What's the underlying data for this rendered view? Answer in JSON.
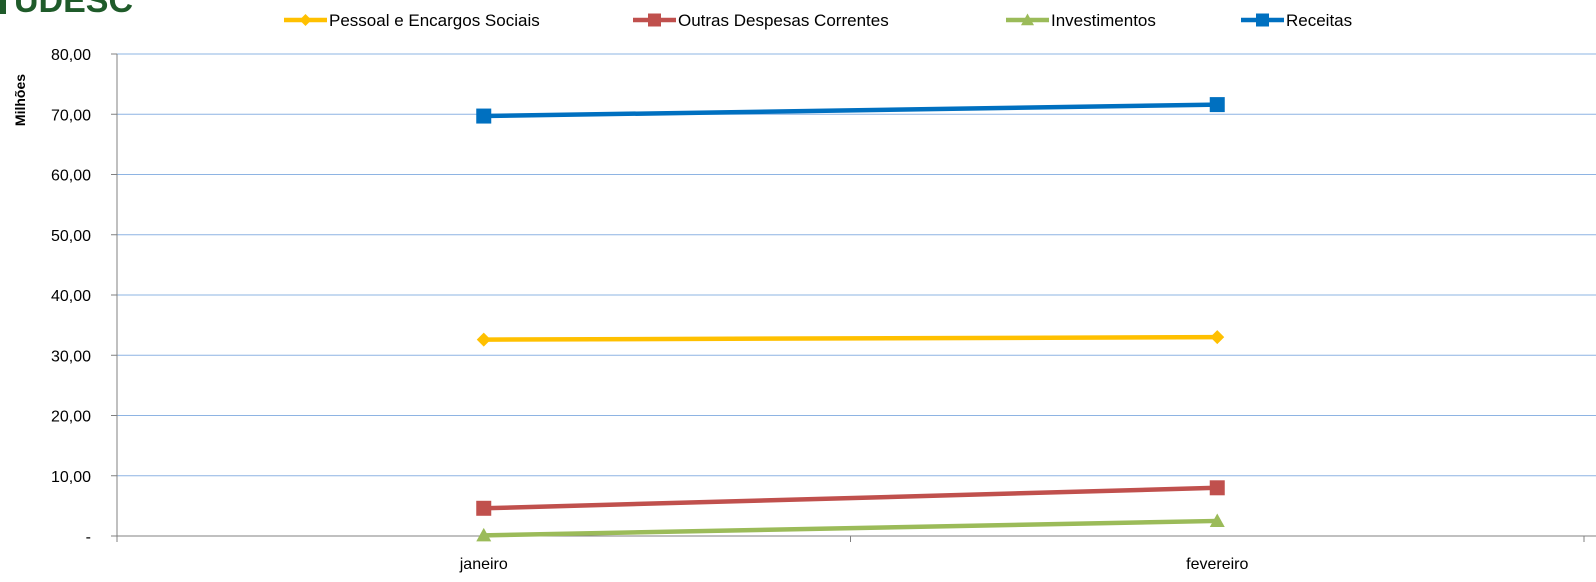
{
  "logo": {
    "text": "UDESC"
  },
  "chart_data": {
    "type": "line",
    "categories": [
      "janeiro",
      "fevereiro"
    ],
    "ylabel": "Milhões",
    "ylim": [
      0,
      80
    ],
    "yticks": [
      "-",
      "10,00",
      "20,00",
      "30,00",
      "40,00",
      "50,00",
      "60,00",
      "70,00",
      "80,00"
    ],
    "grid": true,
    "legend_position": "top",
    "series": [
      {
        "name": "Pessoal e Encargos Sociais",
        "color": "#FFC000",
        "marker": "diamond",
        "values": [
          32.6,
          33.0
        ]
      },
      {
        "name": "Outras Despesas Correntes",
        "color": "#C0504D",
        "marker": "square",
        "values": [
          4.6,
          8.0
        ]
      },
      {
        "name": "Investimentos",
        "color": "#9BBB59",
        "marker": "triangle",
        "values": [
          0.1,
          2.5
        ]
      },
      {
        "name": "Receitas",
        "color": "#0070C0",
        "marker": "square",
        "values": [
          69.7,
          71.6
        ]
      }
    ]
  }
}
